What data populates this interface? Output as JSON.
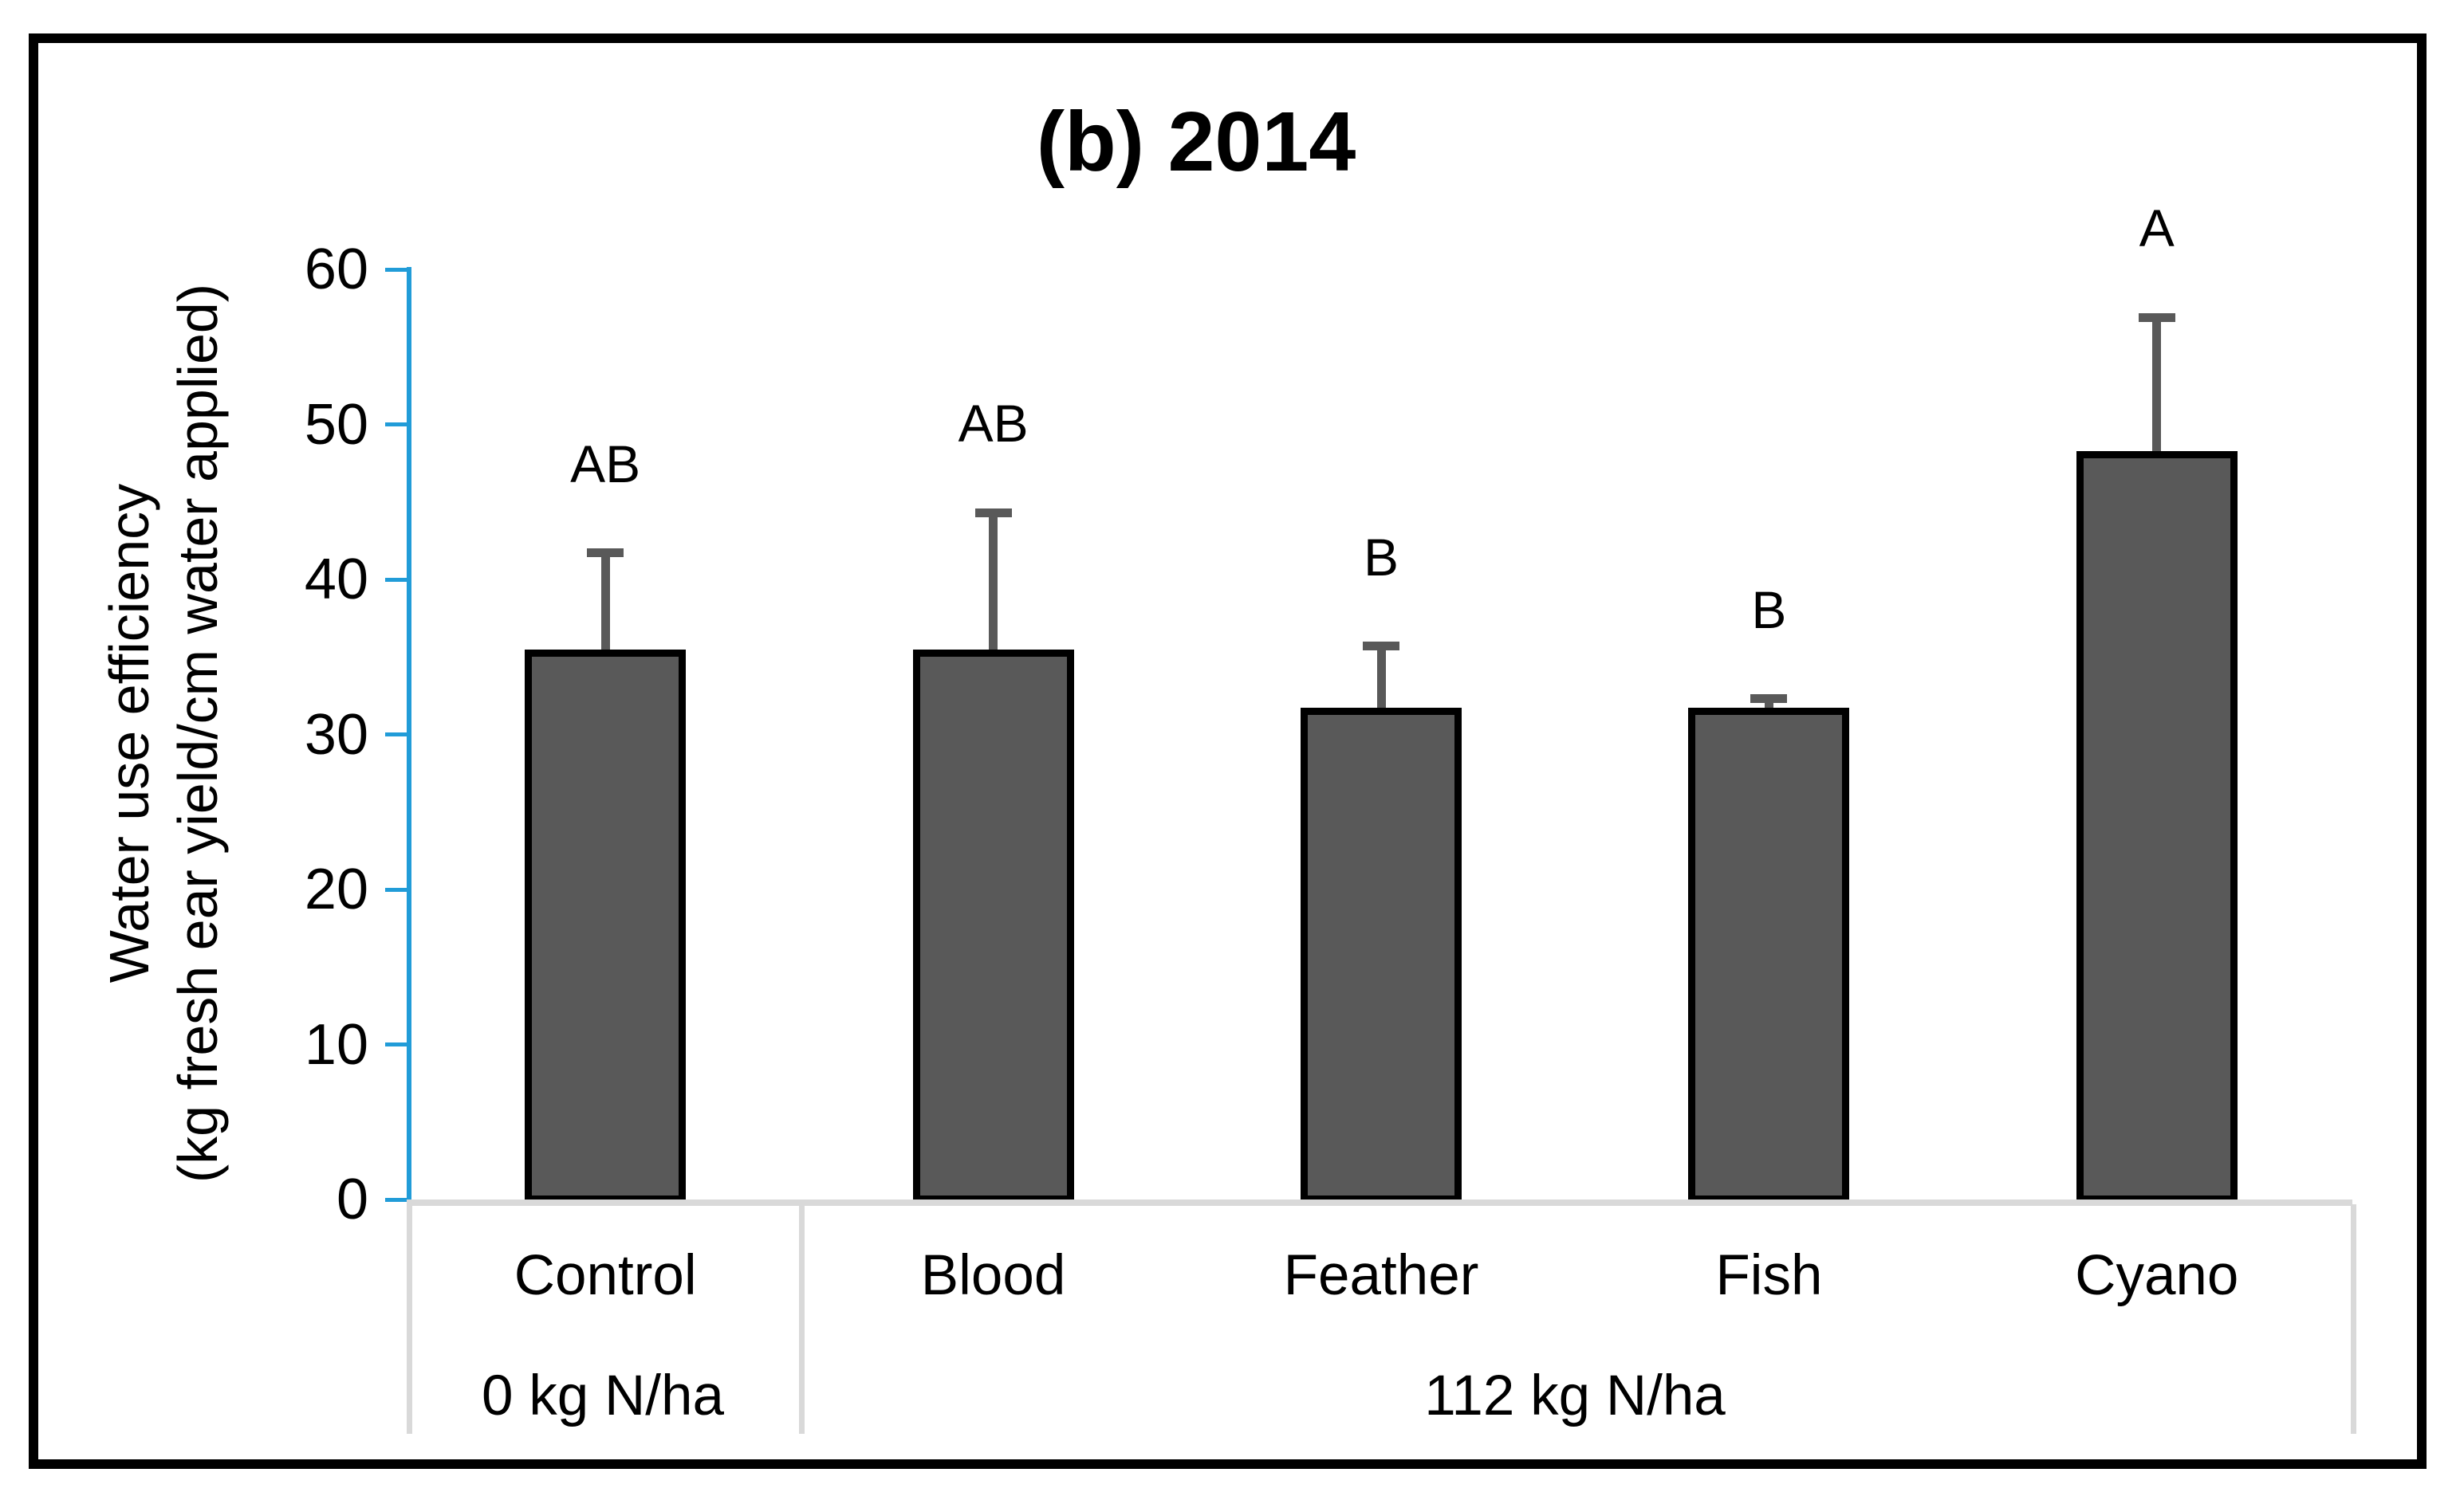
{
  "figure": {
    "title": "(b) 2014"
  },
  "chart_data": {
    "type": "bar",
    "title": "(b) 2014",
    "categories": [
      "Control",
      "Blood",
      "Feather",
      "Fish",
      "Cyano"
    ],
    "values": [
      35.5,
      35.5,
      31.7,
      31.7,
      48.3
    ],
    "error_bar_tops": [
      41.7,
      44.3,
      35.7,
      32.3,
      56.9
    ],
    "significance_letters": [
      "AB",
      "AB",
      "B",
      "B",
      "A"
    ],
    "group_labels": [
      {
        "label": "0 kg N/ha",
        "span": 1
      },
      {
        "label": "112 kg N/ha",
        "span": 4
      }
    ],
    "ylabel_line1": "Water use efficiency",
    "ylabel_line2": "(kg fresh ear yield/cm water applied)",
    "ytick_labels": [
      "0",
      "10",
      "20",
      "30",
      "40",
      "50",
      "60"
    ],
    "yticks": [
      0,
      10,
      20,
      30,
      40,
      50,
      60
    ],
    "ylim": [
      0,
      60
    ],
    "grid": "off",
    "legend": "none",
    "colors": {
      "bar_fill": "#595959",
      "bar_border": "#000000",
      "error_bar": "#595959",
      "y_axis": "#219CD8",
      "table_lines": "#D9D9D9",
      "text": "#000000",
      "figure_border": "#000000"
    }
  }
}
